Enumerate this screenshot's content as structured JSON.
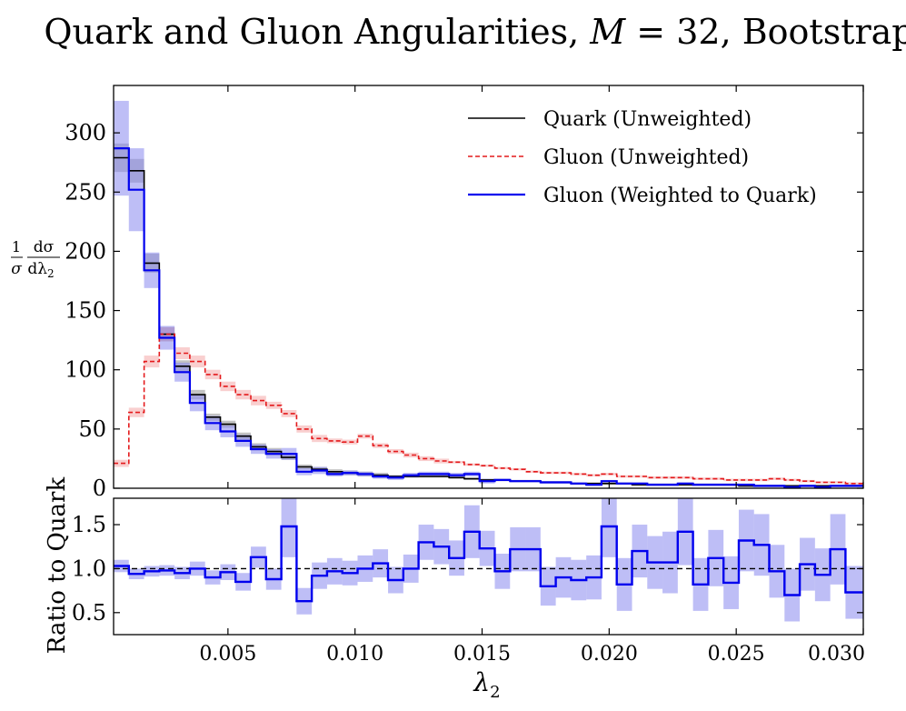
{
  "figure": {
    "title_prefix": "Quark and Gluon Angularities, ",
    "title_math": "M",
    "title_eq": " = 32",
    "title_suffix": ", Bootstrap"
  },
  "colors": {
    "quark": "#000000",
    "gluon": "#e41a1c",
    "weighted": "#0000ee",
    "band": "#8888ee",
    "gluon_band": "#f4a0a0",
    "quark_band": "#888888"
  },
  "chart_data": [
    {
      "type": "line",
      "step": true,
      "ylabel_parts": {
        "frac_num": "1",
        "frac_den": "σ",
        "d_num": "dσ",
        "d_den": "dλ",
        "d_sub": "2"
      },
      "xlim": [
        0.0005,
        0.03
      ],
      "ylim": [
        0,
        340
      ],
      "yticks": [
        "0",
        "50",
        "100",
        "150",
        "200",
        "250",
        "300"
      ],
      "ytick_values": [
        0,
        50,
        100,
        150,
        200,
        250,
        300
      ],
      "grid": false,
      "legend_position": "top-right",
      "bin_edges": [
        0.0005,
        0.0011,
        0.0017,
        0.0023,
        0.0029,
        0.0035,
        0.0041,
        0.0047,
        0.0053,
        0.0059,
        0.0065,
        0.0071,
        0.0077,
        0.0083,
        0.0089,
        0.0095,
        0.0101,
        0.0107,
        0.0113,
        0.0119,
        0.0125,
        0.0131,
        0.0137,
        0.0143,
        0.0149,
        0.0155,
        0.0161,
        0.0167,
        0.0173,
        0.0179,
        0.0185,
        0.0191,
        0.0197,
        0.0203,
        0.0209,
        0.0215,
        0.0221,
        0.0227,
        0.0233,
        0.0239,
        0.0245,
        0.0251,
        0.0257,
        0.0263,
        0.0269,
        0.0275,
        0.0281,
        0.0287,
        0.0293,
        0.03
      ],
      "series": [
        {
          "name": "Quark (Unweighted)",
          "style": "solid",
          "color_key": "quark",
          "band_key": "quark_band",
          "values": [
            279,
            268,
            190,
            130,
            103,
            79,
            60,
            54,
            44,
            35,
            31,
            26,
            18,
            16,
            14,
            13,
            12,
            11,
            10,
            10,
            10,
            10,
            9,
            8,
            7,
            7,
            6,
            6,
            5,
            5,
            4,
            4,
            4,
            4,
            3,
            3,
            3,
            3,
            3,
            3,
            3,
            2,
            2,
            2,
            2,
            2,
            2,
            2,
            2
          ],
          "errors": [
            12,
            10,
            8,
            6,
            5,
            4,
            3,
            3,
            3,
            3,
            3,
            2,
            2,
            2,
            2,
            2,
            2,
            2,
            1,
            1,
            1,
            1,
            1,
            1,
            1,
            1,
            1,
            1,
            1,
            1,
            1,
            1,
            1,
            1,
            1,
            1,
            1,
            1,
            1,
            1,
            1,
            1,
            1,
            1,
            1,
            1,
            1,
            1,
            1
          ]
        },
        {
          "name": "Gluon (Unweighted)",
          "style": "dashed",
          "color_key": "gluon",
          "band_key": "gluon_band",
          "values": [
            21,
            64,
            107,
            130,
            114,
            107,
            96,
            86,
            79,
            74,
            70,
            63,
            50,
            42,
            40,
            39,
            44,
            36,
            31,
            28,
            25,
            23,
            22,
            20,
            19,
            17,
            16,
            14,
            13,
            13,
            12,
            11,
            12,
            10,
            10,
            9,
            9,
            9,
            8,
            8,
            7,
            7,
            7,
            8,
            7,
            6,
            5,
            5,
            4
          ],
          "errors": [
            3,
            4,
            5,
            6,
            5,
            5,
            4,
            4,
            4,
            4,
            3,
            3,
            3,
            3,
            2,
            2,
            2,
            2,
            2,
            2,
            2,
            2,
            1,
            1,
            1,
            1,
            1,
            1,
            1,
            1,
            1,
            1,
            1,
            1,
            1,
            1,
            1,
            1,
            1,
            1,
            1,
            1,
            1,
            1,
            1,
            1,
            1,
            1,
            1
          ]
        },
        {
          "name": "Gluon (Weighted to Quark)",
          "style": "solid",
          "color_key": "weighted",
          "band_key": "band",
          "values": [
            287,
            252,
            184,
            127,
            98,
            72,
            55,
            48,
            40,
            33,
            29,
            29,
            14,
            15,
            12,
            13,
            12,
            10,
            9,
            11,
            12,
            12,
            11,
            12,
            6,
            7,
            6,
            6,
            5,
            5,
            4,
            3,
            6,
            4,
            4,
            3,
            3,
            4,
            3,
            3,
            3,
            3,
            2,
            2,
            1,
            2,
            1,
            2,
            2
          ],
          "errors": [
            40,
            35,
            15,
            10,
            8,
            7,
            6,
            5,
            5,
            4,
            4,
            5,
            3,
            3,
            2,
            2,
            2,
            2,
            2,
            2,
            2,
            2,
            2,
            2,
            2,
            1,
            1,
            1,
            1,
            1,
            1,
            1,
            1,
            1,
            1,
            1,
            1,
            1,
            1,
            1,
            1,
            1,
            1,
            1,
            1,
            1,
            1,
            1,
            1
          ]
        }
      ]
    },
    {
      "type": "line",
      "step": true,
      "ylabel": "Ratio to Quark",
      "xlabel_math": "λ",
      "xlabel_sub": "2",
      "xlim": [
        0.0005,
        0.03
      ],
      "ylim": [
        0.25,
        1.8
      ],
      "yticks": [
        "0.5",
        "1.0",
        "1.5"
      ],
      "ytick_values": [
        0.5,
        1.0,
        1.5
      ],
      "xticks": [
        "0.005",
        "0.010",
        "0.015",
        "0.020",
        "0.025",
        "0.030"
      ],
      "xtick_values": [
        0.005,
        0.01,
        0.015,
        0.02,
        0.025,
        0.03
      ],
      "reference_line": 1.0,
      "series": [
        {
          "name": "Ratio",
          "color_key": "weighted",
          "band_key": "band",
          "values": [
            1.03,
            0.94,
            0.97,
            0.98,
            0.95,
            1.0,
            0.9,
            0.96,
            0.85,
            1.13,
            0.88,
            1.48,
            0.63,
            0.92,
            0.97,
            0.95,
            1.0,
            1.06,
            0.87,
            1.0,
            1.3,
            1.25,
            1.12,
            1.42,
            1.23,
            0.97,
            1.22,
            1.22,
            0.8,
            0.9,
            0.87,
            0.9,
            1.48,
            0.82,
            1.2,
            1.07,
            1.07,
            1.42,
            0.82,
            1.12,
            0.84,
            1.32,
            1.27,
            0.97,
            0.7,
            1.05,
            0.93,
            1.22,
            0.73
          ],
          "errors": [
            0.07,
            0.06,
            0.06,
            0.06,
            0.07,
            0.08,
            0.08,
            0.09,
            0.1,
            0.12,
            0.12,
            0.35,
            0.15,
            0.15,
            0.15,
            0.14,
            0.15,
            0.16,
            0.15,
            0.16,
            0.2,
            0.2,
            0.2,
            0.3,
            0.2,
            0.2,
            0.25,
            0.25,
            0.22,
            0.23,
            0.23,
            0.25,
            0.35,
            0.3,
            0.3,
            0.3,
            0.35,
            0.38,
            0.3,
            0.32,
            0.3,
            0.35,
            0.35,
            0.3,
            0.3,
            0.3,
            0.3,
            0.4,
            0.3
          ]
        }
      ]
    }
  ]
}
